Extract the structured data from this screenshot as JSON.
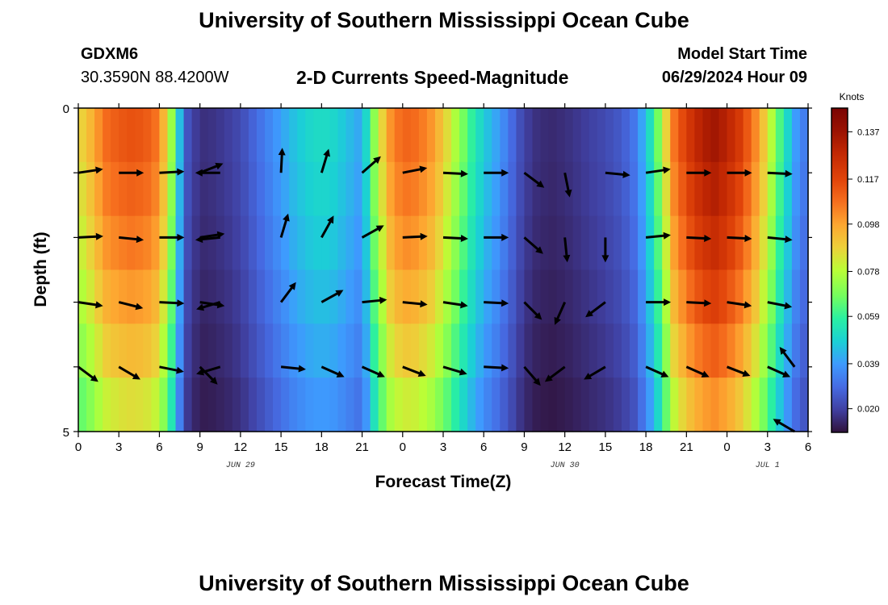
{
  "header": {
    "title": "University of Southern Mississippi Ocean Cube",
    "station_id": "GDXM6",
    "coordinates": "30.3590N  88.4200W",
    "subtitle": "2-D Currents Speed-Magnitude",
    "model_start_label": "Model Start Time",
    "model_start_value": "06/29/2024 Hour 09"
  },
  "footer": {
    "title": "University of Southern Mississippi Ocean Cube"
  },
  "chart_data": {
    "type": "heatmap",
    "title": "2-D Currents Speed-Magnitude",
    "xlabel": "Forecast Time(Z)",
    "ylabel": "Depth (ft)",
    "x_hours_from_start": [
      0,
      54
    ],
    "y_depth_range": [
      0,
      5
    ],
    "x_tick_labels": [
      "0",
      "3",
      "6",
      "9",
      "12",
      "15",
      "18",
      "21",
      "0",
      "3",
      "6",
      "9",
      "12",
      "15",
      "18",
      "21",
      "0",
      "3",
      "6"
    ],
    "y_tick_labels": [
      "0",
      "5"
    ],
    "date_labels": [
      {
        "label": "JUN 29",
        "hour": 12
      },
      {
        "label": "JUN 30",
        "hour": 36
      },
      {
        "label": "JUL 1",
        "hour": 51
      }
    ],
    "colorbar": {
      "title": "Knots",
      "min": 0.01,
      "max": 0.147,
      "tick_values": [
        0.137,
        0.117,
        0.098,
        0.078,
        0.059,
        0.039,
        0.02
      ],
      "tick_labels": [
        "0.137",
        "0.117",
        "0.098",
        "0.078",
        "0.059",
        "0.039",
        "0.020"
      ]
    },
    "speed_profile": {
      "hours": [
        0,
        1,
        2,
        3,
        4,
        5,
        6,
        7,
        7.5,
        8,
        9,
        10,
        11,
        12,
        13,
        14,
        15,
        16,
        17,
        18,
        19,
        20,
        21,
        22,
        23,
        24,
        25,
        26,
        27,
        28,
        29,
        30,
        31,
        32,
        33,
        34,
        35,
        36,
        37,
        38,
        39,
        40,
        41,
        42,
        43,
        44,
        45,
        46,
        47,
        48,
        49,
        50,
        51,
        52,
        53,
        54
      ],
      "speeds": [
        0.085,
        0.095,
        0.108,
        0.112,
        0.114,
        0.112,
        0.105,
        0.07,
        0.045,
        0.025,
        0.016,
        0.017,
        0.019,
        0.022,
        0.028,
        0.034,
        0.04,
        0.046,
        0.05,
        0.052,
        0.05,
        0.045,
        0.04,
        0.075,
        0.1,
        0.11,
        0.108,
        0.102,
        0.09,
        0.075,
        0.06,
        0.048,
        0.04,
        0.03,
        0.02,
        0.016,
        0.015,
        0.016,
        0.018,
        0.02,
        0.022,
        0.025,
        0.03,
        0.045,
        0.07,
        0.105,
        0.12,
        0.13,
        0.136,
        0.13,
        0.12,
        0.105,
        0.085,
        0.06,
        0.04,
        0.03
      ],
      "depth_factor": [
        1.0,
        0.97,
        0.93,
        0.88,
        0.82,
        0.75
      ]
    },
    "vectors": {
      "rows_depth": [
        0,
        1,
        2,
        3,
        4,
        5
      ],
      "items": [
        {
          "h": 0,
          "r": 1,
          "dx": 1,
          "dy": -0.15
        },
        {
          "h": 3,
          "r": 1,
          "dx": 1,
          "dy": 0.0
        },
        {
          "h": 6,
          "r": 1,
          "dx": 1,
          "dy": -0.05
        },
        {
          "h": 9,
          "r": 1,
          "dx": 1,
          "dy": -0.4
        },
        {
          "h": 10.5,
          "r": 1,
          "dx": -1,
          "dy": 0.0
        },
        {
          "h": 15,
          "r": 1,
          "dx": 0.05,
          "dy": -1
        },
        {
          "h": 18,
          "r": 1,
          "dx": 0.3,
          "dy": -1
        },
        {
          "h": 21,
          "r": 1,
          "dx": 0.8,
          "dy": -0.7
        },
        {
          "h": 24,
          "r": 1,
          "dx": 1,
          "dy": -0.2
        },
        {
          "h": 27,
          "r": 1,
          "dx": 1,
          "dy": 0.05
        },
        {
          "h": 30,
          "r": 1,
          "dx": 1,
          "dy": 0.0
        },
        {
          "h": 33,
          "r": 1,
          "dx": 0.8,
          "dy": 0.6
        },
        {
          "h": 36,
          "r": 1,
          "dx": 0.2,
          "dy": 1
        },
        {
          "h": 39,
          "r": 1,
          "dx": 1,
          "dy": 0.1
        },
        {
          "h": 42,
          "r": 1,
          "dx": 1,
          "dy": -0.15
        },
        {
          "h": 45,
          "r": 1,
          "dx": 1,
          "dy": 0.0
        },
        {
          "h": 48,
          "r": 1,
          "dx": 1,
          "dy": 0.0
        },
        {
          "h": 51,
          "r": 1,
          "dx": 1,
          "dy": 0.05
        },
        {
          "h": 0,
          "r": 2,
          "dx": 1,
          "dy": -0.05
        },
        {
          "h": 3,
          "r": 2,
          "dx": 1,
          "dy": 0.1
        },
        {
          "h": 6,
          "r": 2,
          "dx": 1,
          "dy": 0.0
        },
        {
          "h": 9,
          "r": 2,
          "dx": 1,
          "dy": -0.15
        },
        {
          "h": 10.5,
          "r": 2,
          "dx": -1,
          "dy": 0.1
        },
        {
          "h": 15,
          "r": 2,
          "dx": 0.3,
          "dy": -1
        },
        {
          "h": 18,
          "r": 2,
          "dx": 0.5,
          "dy": -0.9
        },
        {
          "h": 21,
          "r": 2,
          "dx": 0.9,
          "dy": -0.5
        },
        {
          "h": 24,
          "r": 2,
          "dx": 1,
          "dy": -0.05
        },
        {
          "h": 27,
          "r": 2,
          "dx": 1,
          "dy": 0.05
        },
        {
          "h": 30,
          "r": 2,
          "dx": 1,
          "dy": 0.0
        },
        {
          "h": 33,
          "r": 2,
          "dx": 0.75,
          "dy": 0.65
        },
        {
          "h": 36,
          "r": 2,
          "dx": 0.1,
          "dy": 1
        },
        {
          "h": 39,
          "r": 2,
          "dx": 0.0,
          "dy": 1
        },
        {
          "h": 42,
          "r": 2,
          "dx": 1,
          "dy": -0.1
        },
        {
          "h": 45,
          "r": 2,
          "dx": 1,
          "dy": 0.05
        },
        {
          "h": 48,
          "r": 2,
          "dx": 1,
          "dy": 0.05
        },
        {
          "h": 51,
          "r": 2,
          "dx": 1,
          "dy": 0.1
        },
        {
          "h": 0,
          "r": 3,
          "dx": 1,
          "dy": 0.15
        },
        {
          "h": 3,
          "r": 3,
          "dx": 1,
          "dy": 0.25
        },
        {
          "h": 6,
          "r": 3,
          "dx": 1,
          "dy": 0.05
        },
        {
          "h": 9,
          "r": 3,
          "dx": 1,
          "dy": 0.15
        },
        {
          "h": 10.5,
          "r": 3,
          "dx": -1,
          "dy": 0.3
        },
        {
          "h": 15,
          "r": 3,
          "dx": 0.6,
          "dy": -0.8
        },
        {
          "h": 18,
          "r": 3,
          "dx": 0.9,
          "dy": -0.5
        },
        {
          "h": 21,
          "r": 3,
          "dx": 1,
          "dy": -0.1
        },
        {
          "h": 24,
          "r": 3,
          "dx": 1,
          "dy": 0.1
        },
        {
          "h": 27,
          "r": 3,
          "dx": 1,
          "dy": 0.15
        },
        {
          "h": 30,
          "r": 3,
          "dx": 1,
          "dy": 0.05
        },
        {
          "h": 33,
          "r": 3,
          "dx": 0.7,
          "dy": 0.7
        },
        {
          "h": 36,
          "r": 3,
          "dx": -0.4,
          "dy": 0.9
        },
        {
          "h": 39,
          "r": 3,
          "dx": -0.8,
          "dy": 0.6
        },
        {
          "h": 42,
          "r": 3,
          "dx": 1,
          "dy": 0.0
        },
        {
          "h": 45,
          "r": 3,
          "dx": 1,
          "dy": 0.05
        },
        {
          "h": 48,
          "r": 3,
          "dx": 1,
          "dy": 0.15
        },
        {
          "h": 51,
          "r": 3,
          "dx": 1,
          "dy": 0.2
        },
        {
          "h": 0,
          "r": 4,
          "dx": 0.8,
          "dy": 0.6
        },
        {
          "h": 3,
          "r": 4,
          "dx": 0.85,
          "dy": 0.5
        },
        {
          "h": 6,
          "r": 4,
          "dx": 1,
          "dy": 0.2
        },
        {
          "h": 9,
          "r": 4,
          "dx": 0.7,
          "dy": 0.7
        },
        {
          "h": 10.5,
          "r": 4,
          "dx": -1,
          "dy": 0.3
        },
        {
          "h": 15,
          "r": 4,
          "dx": 1,
          "dy": 0.1
        },
        {
          "h": 18,
          "r": 4,
          "dx": 0.9,
          "dy": 0.4
        },
        {
          "h": 21,
          "r": 4,
          "dx": 0.9,
          "dy": 0.4
        },
        {
          "h": 24,
          "r": 4,
          "dx": 0.9,
          "dy": 0.35
        },
        {
          "h": 27,
          "r": 4,
          "dx": 1,
          "dy": 0.3
        },
        {
          "h": 30,
          "r": 4,
          "dx": 1,
          "dy": 0.05
        },
        {
          "h": 33,
          "r": 4,
          "dx": 0.65,
          "dy": 0.75
        },
        {
          "h": 36,
          "r": 4,
          "dx": -0.8,
          "dy": 0.6
        },
        {
          "h": 39,
          "r": 4,
          "dx": -0.85,
          "dy": 0.5
        },
        {
          "h": 42,
          "r": 4,
          "dx": 0.9,
          "dy": 0.4
        },
        {
          "h": 45,
          "r": 4,
          "dx": 0.9,
          "dy": 0.4
        },
        {
          "h": 48,
          "r": 4,
          "dx": 0.9,
          "dy": 0.35
        },
        {
          "h": 51,
          "r": 4,
          "dx": 0.9,
          "dy": 0.4
        },
        {
          "h": 53,
          "r": 4,
          "dx": -0.6,
          "dy": -0.8
        },
        {
          "h": 53,
          "r": 5,
          "dx": -0.85,
          "dy": -0.5
        }
      ]
    },
    "grid": false
  }
}
